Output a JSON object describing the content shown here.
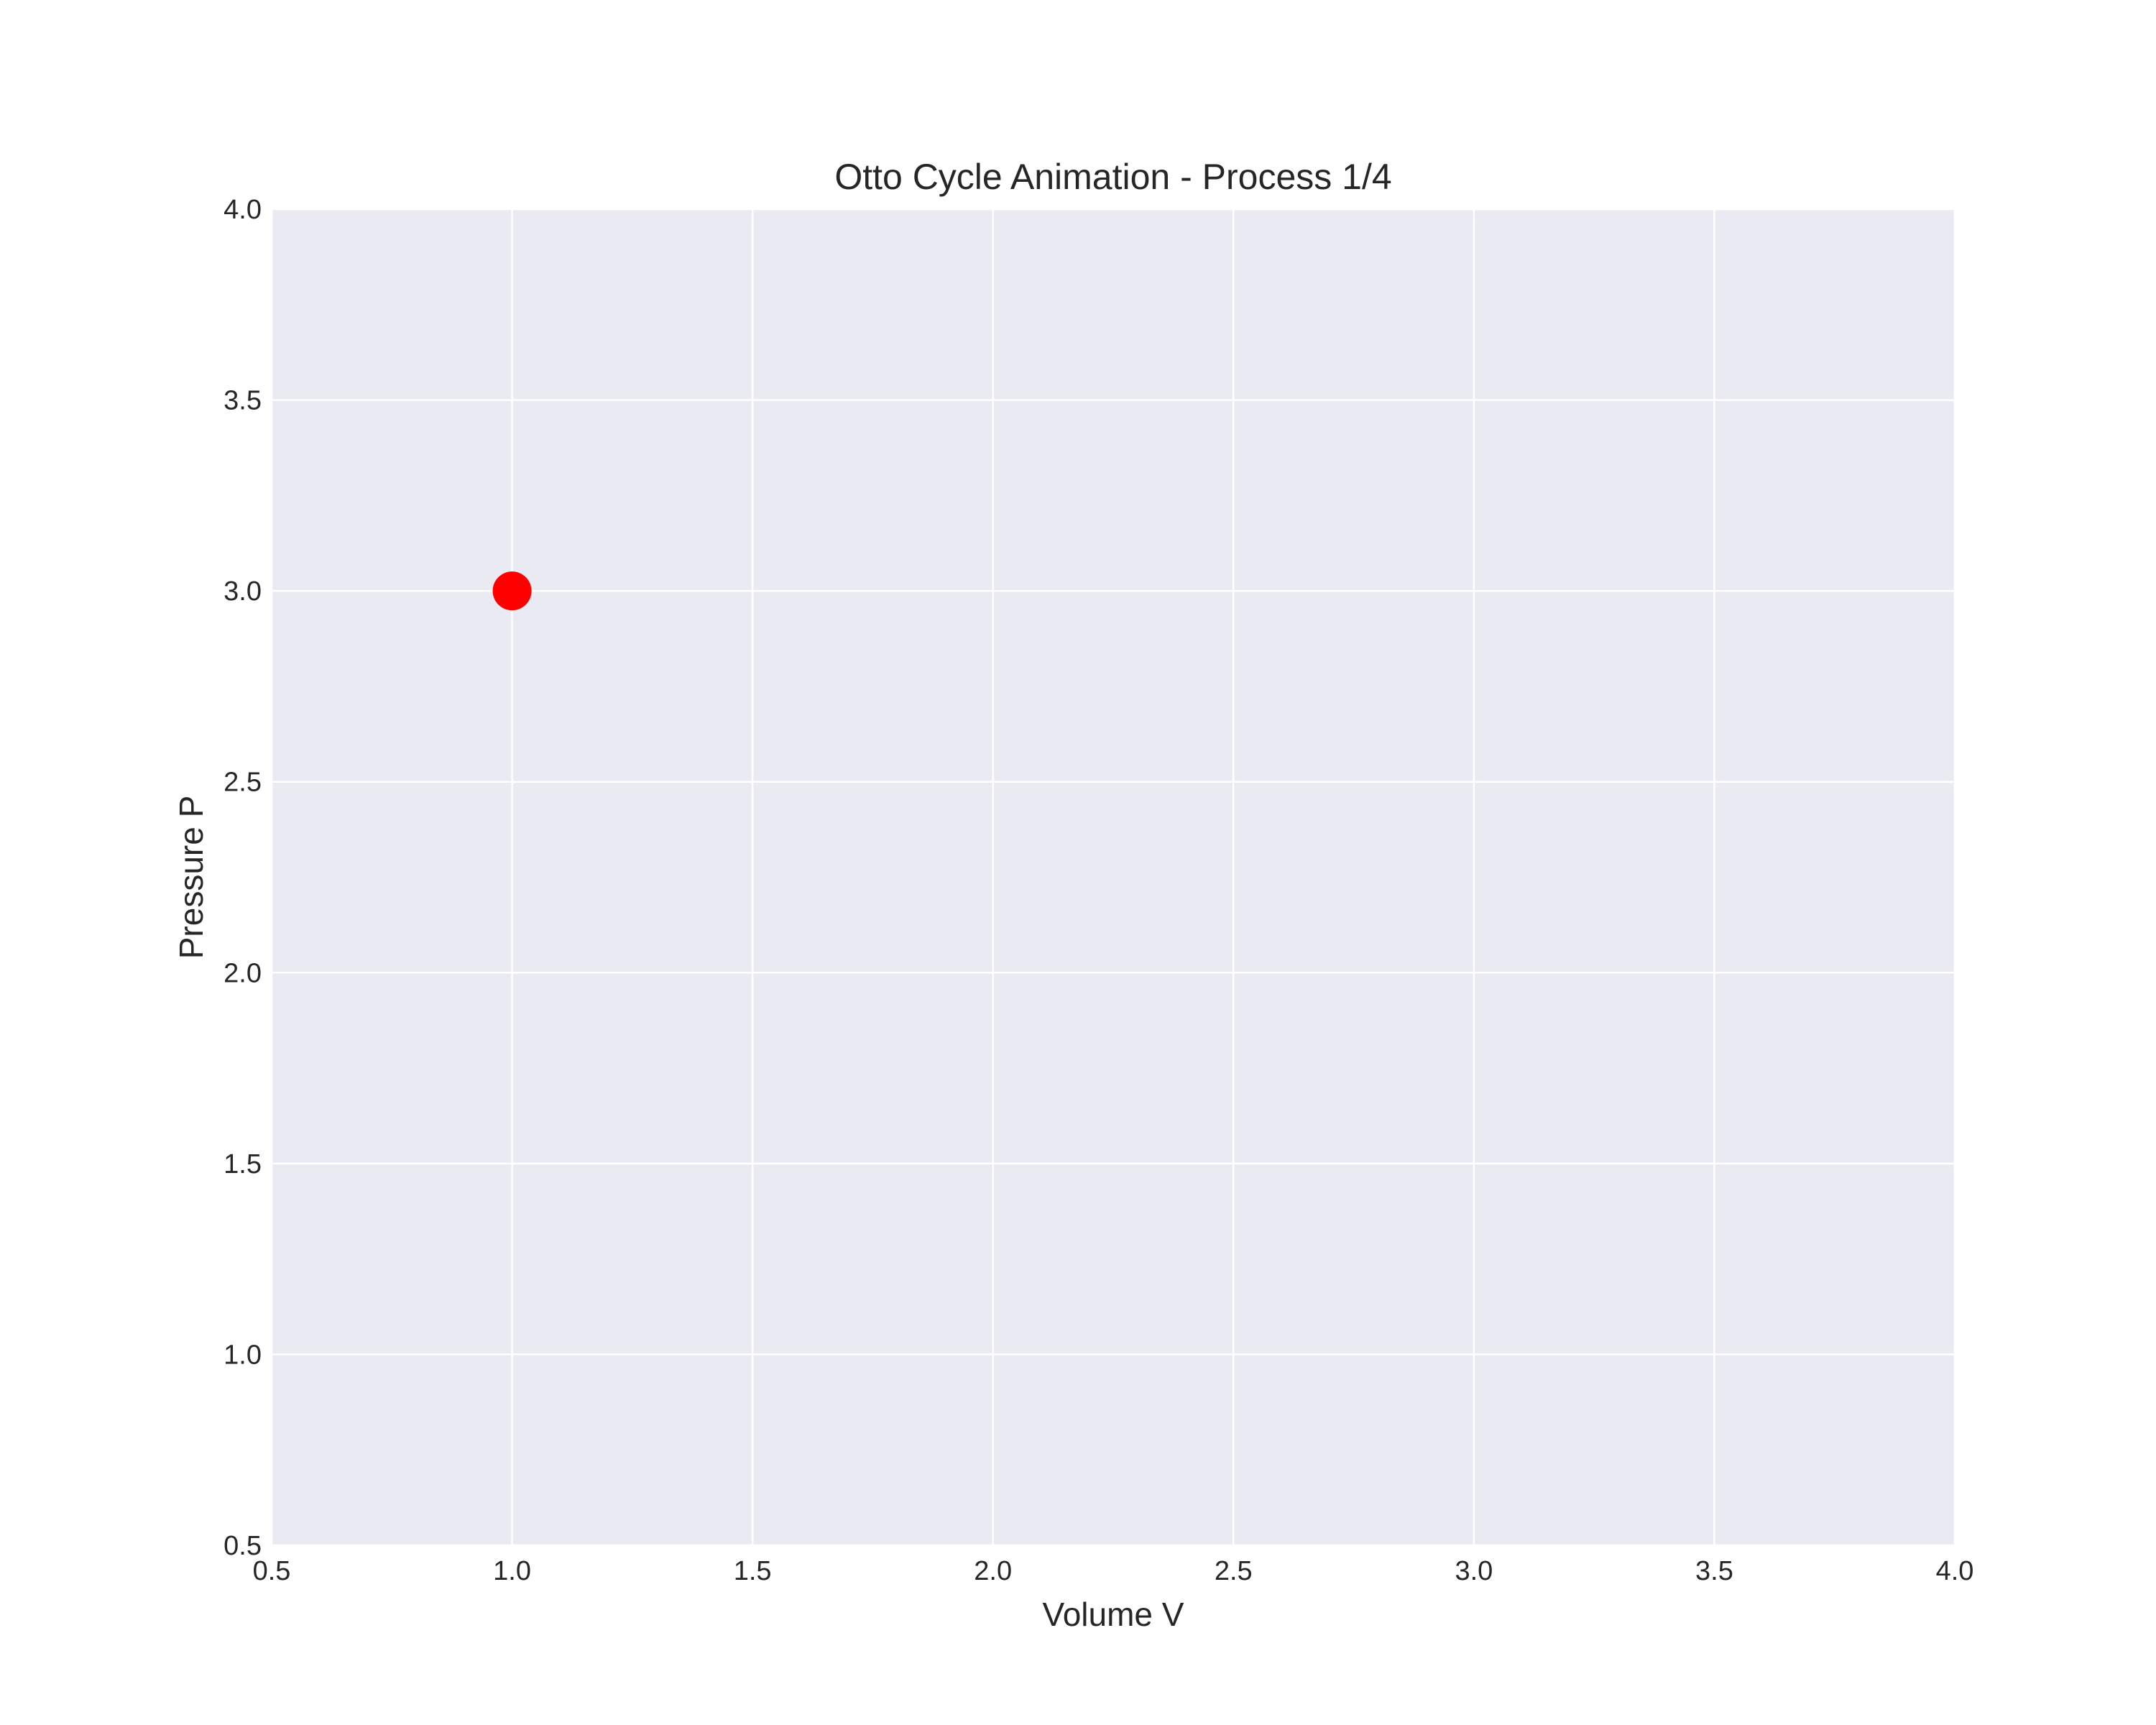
{
  "chart_data": {
    "type": "scatter",
    "title": "Otto Cycle Animation - Process 1/4",
    "xlabel": "Volume V",
    "ylabel": "Pressure P",
    "xlim": [
      0.5,
      4.0
    ],
    "ylim": [
      0.5,
      4.0
    ],
    "xticks": [
      "0.5",
      "1.0",
      "1.5",
      "2.0",
      "2.5",
      "3.0",
      "3.5",
      "4.0"
    ],
    "yticks": [
      "0.5",
      "1.0",
      "1.5",
      "2.0",
      "2.5",
      "3.0",
      "3.5",
      "4.0"
    ],
    "grid": true,
    "legend": "none",
    "points": [
      {
        "x": 1.0,
        "y": 3.0
      }
    ],
    "colors": {
      "plot_background": "#eaeaf2",
      "grid": "#ffffff",
      "point": "#ff0000",
      "text": "#262626"
    }
  }
}
